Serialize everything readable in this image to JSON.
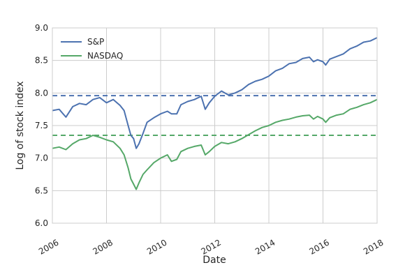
{
  "chart_data": {
    "type": "line",
    "title": "",
    "xlabel": "Date",
    "ylabel": "Log of stock index",
    "xlim": [
      2006,
      2018
    ],
    "ylim": [
      6.0,
      9.0
    ],
    "x_ticks": [
      2006,
      2008,
      2010,
      2012,
      2014,
      2016,
      2018
    ],
    "x_tick_labels": [
      "2006",
      "2008",
      "2010",
      "2012",
      "2014",
      "2016",
      "2018"
    ],
    "y_ticks": [
      6.0,
      6.5,
      7.0,
      7.5,
      8.0,
      8.5,
      9.0
    ],
    "y_tick_labels": [
      "6.0",
      "6.5",
      "7.0",
      "7.5",
      "8.0",
      "8.5",
      "9.0"
    ],
    "grid": true,
    "legend_position": "top-left",
    "series": [
      {
        "name": "S&P",
        "color": "#4c72b0",
        "x": [
          2006.0,
          2006.25,
          2006.5,
          2006.75,
          2007.0,
          2007.25,
          2007.5,
          2007.75,
          2008.0,
          2008.25,
          2008.5,
          2008.65,
          2008.8,
          2008.9,
          2009.0,
          2009.1,
          2009.2,
          2009.35,
          2009.5,
          2009.75,
          2010.0,
          2010.25,
          2010.4,
          2010.6,
          2010.75,
          2011.0,
          2011.25,
          2011.5,
          2011.65,
          2011.8,
          2012.0,
          2012.25,
          2012.5,
          2012.75,
          2013.0,
          2013.25,
          2013.5,
          2013.75,
          2014.0,
          2014.25,
          2014.5,
          2014.75,
          2015.0,
          2015.25,
          2015.5,
          2015.65,
          2015.8,
          2016.0,
          2016.1,
          2016.25,
          2016.5,
          2016.75,
          2017.0,
          2017.25,
          2017.5,
          2017.75,
          2018.0
        ],
        "y": [
          7.73,
          7.75,
          7.63,
          7.79,
          7.84,
          7.82,
          7.9,
          7.93,
          7.85,
          7.9,
          7.81,
          7.73,
          7.5,
          7.35,
          7.3,
          7.15,
          7.22,
          7.38,
          7.55,
          7.62,
          7.68,
          7.72,
          7.68,
          7.68,
          7.82,
          7.87,
          7.9,
          7.95,
          7.75,
          7.85,
          7.95,
          8.03,
          7.97,
          8.0,
          8.05,
          8.13,
          8.18,
          8.21,
          8.26,
          8.34,
          8.38,
          8.45,
          8.47,
          8.53,
          8.55,
          8.48,
          8.51,
          8.48,
          8.43,
          8.52,
          8.56,
          8.6,
          8.68,
          8.72,
          8.78,
          8.8,
          8.85
        ]
      },
      {
        "name": "NASDAQ",
        "color": "#55a868",
        "x": [
          2006.0,
          2006.25,
          2006.5,
          2006.75,
          2007.0,
          2007.25,
          2007.5,
          2007.75,
          2008.0,
          2008.25,
          2008.5,
          2008.65,
          2008.8,
          2008.9,
          2009.0,
          2009.1,
          2009.2,
          2009.35,
          2009.5,
          2009.75,
          2010.0,
          2010.25,
          2010.4,
          2010.6,
          2010.75,
          2011.0,
          2011.25,
          2011.5,
          2011.65,
          2011.8,
          2012.0,
          2012.25,
          2012.5,
          2012.75,
          2013.0,
          2013.25,
          2013.5,
          2013.75,
          2014.0,
          2014.25,
          2014.5,
          2014.75,
          2015.0,
          2015.25,
          2015.5,
          2015.65,
          2015.8,
          2016.0,
          2016.1,
          2016.25,
          2016.5,
          2016.75,
          2017.0,
          2017.25,
          2017.5,
          2017.75,
          2018.0
        ],
        "y": [
          7.15,
          7.17,
          7.13,
          7.22,
          7.28,
          7.3,
          7.35,
          7.32,
          7.28,
          7.25,
          7.15,
          7.05,
          6.85,
          6.68,
          6.6,
          6.52,
          6.62,
          6.75,
          6.82,
          6.93,
          7.0,
          7.05,
          6.95,
          6.98,
          7.1,
          7.15,
          7.18,
          7.2,
          7.05,
          7.1,
          7.18,
          7.24,
          7.22,
          7.25,
          7.3,
          7.36,
          7.42,
          7.47,
          7.5,
          7.55,
          7.58,
          7.6,
          7.63,
          7.65,
          7.66,
          7.6,
          7.64,
          7.6,
          7.55,
          7.62,
          7.66,
          7.68,
          7.75,
          7.78,
          7.82,
          7.85,
          7.9
        ]
      }
    ],
    "reference_lines": [
      {
        "y": 7.96,
        "color": "#4c72b0",
        "style": "dashed"
      },
      {
        "y": 7.35,
        "color": "#55a868",
        "style": "dashed"
      }
    ]
  }
}
